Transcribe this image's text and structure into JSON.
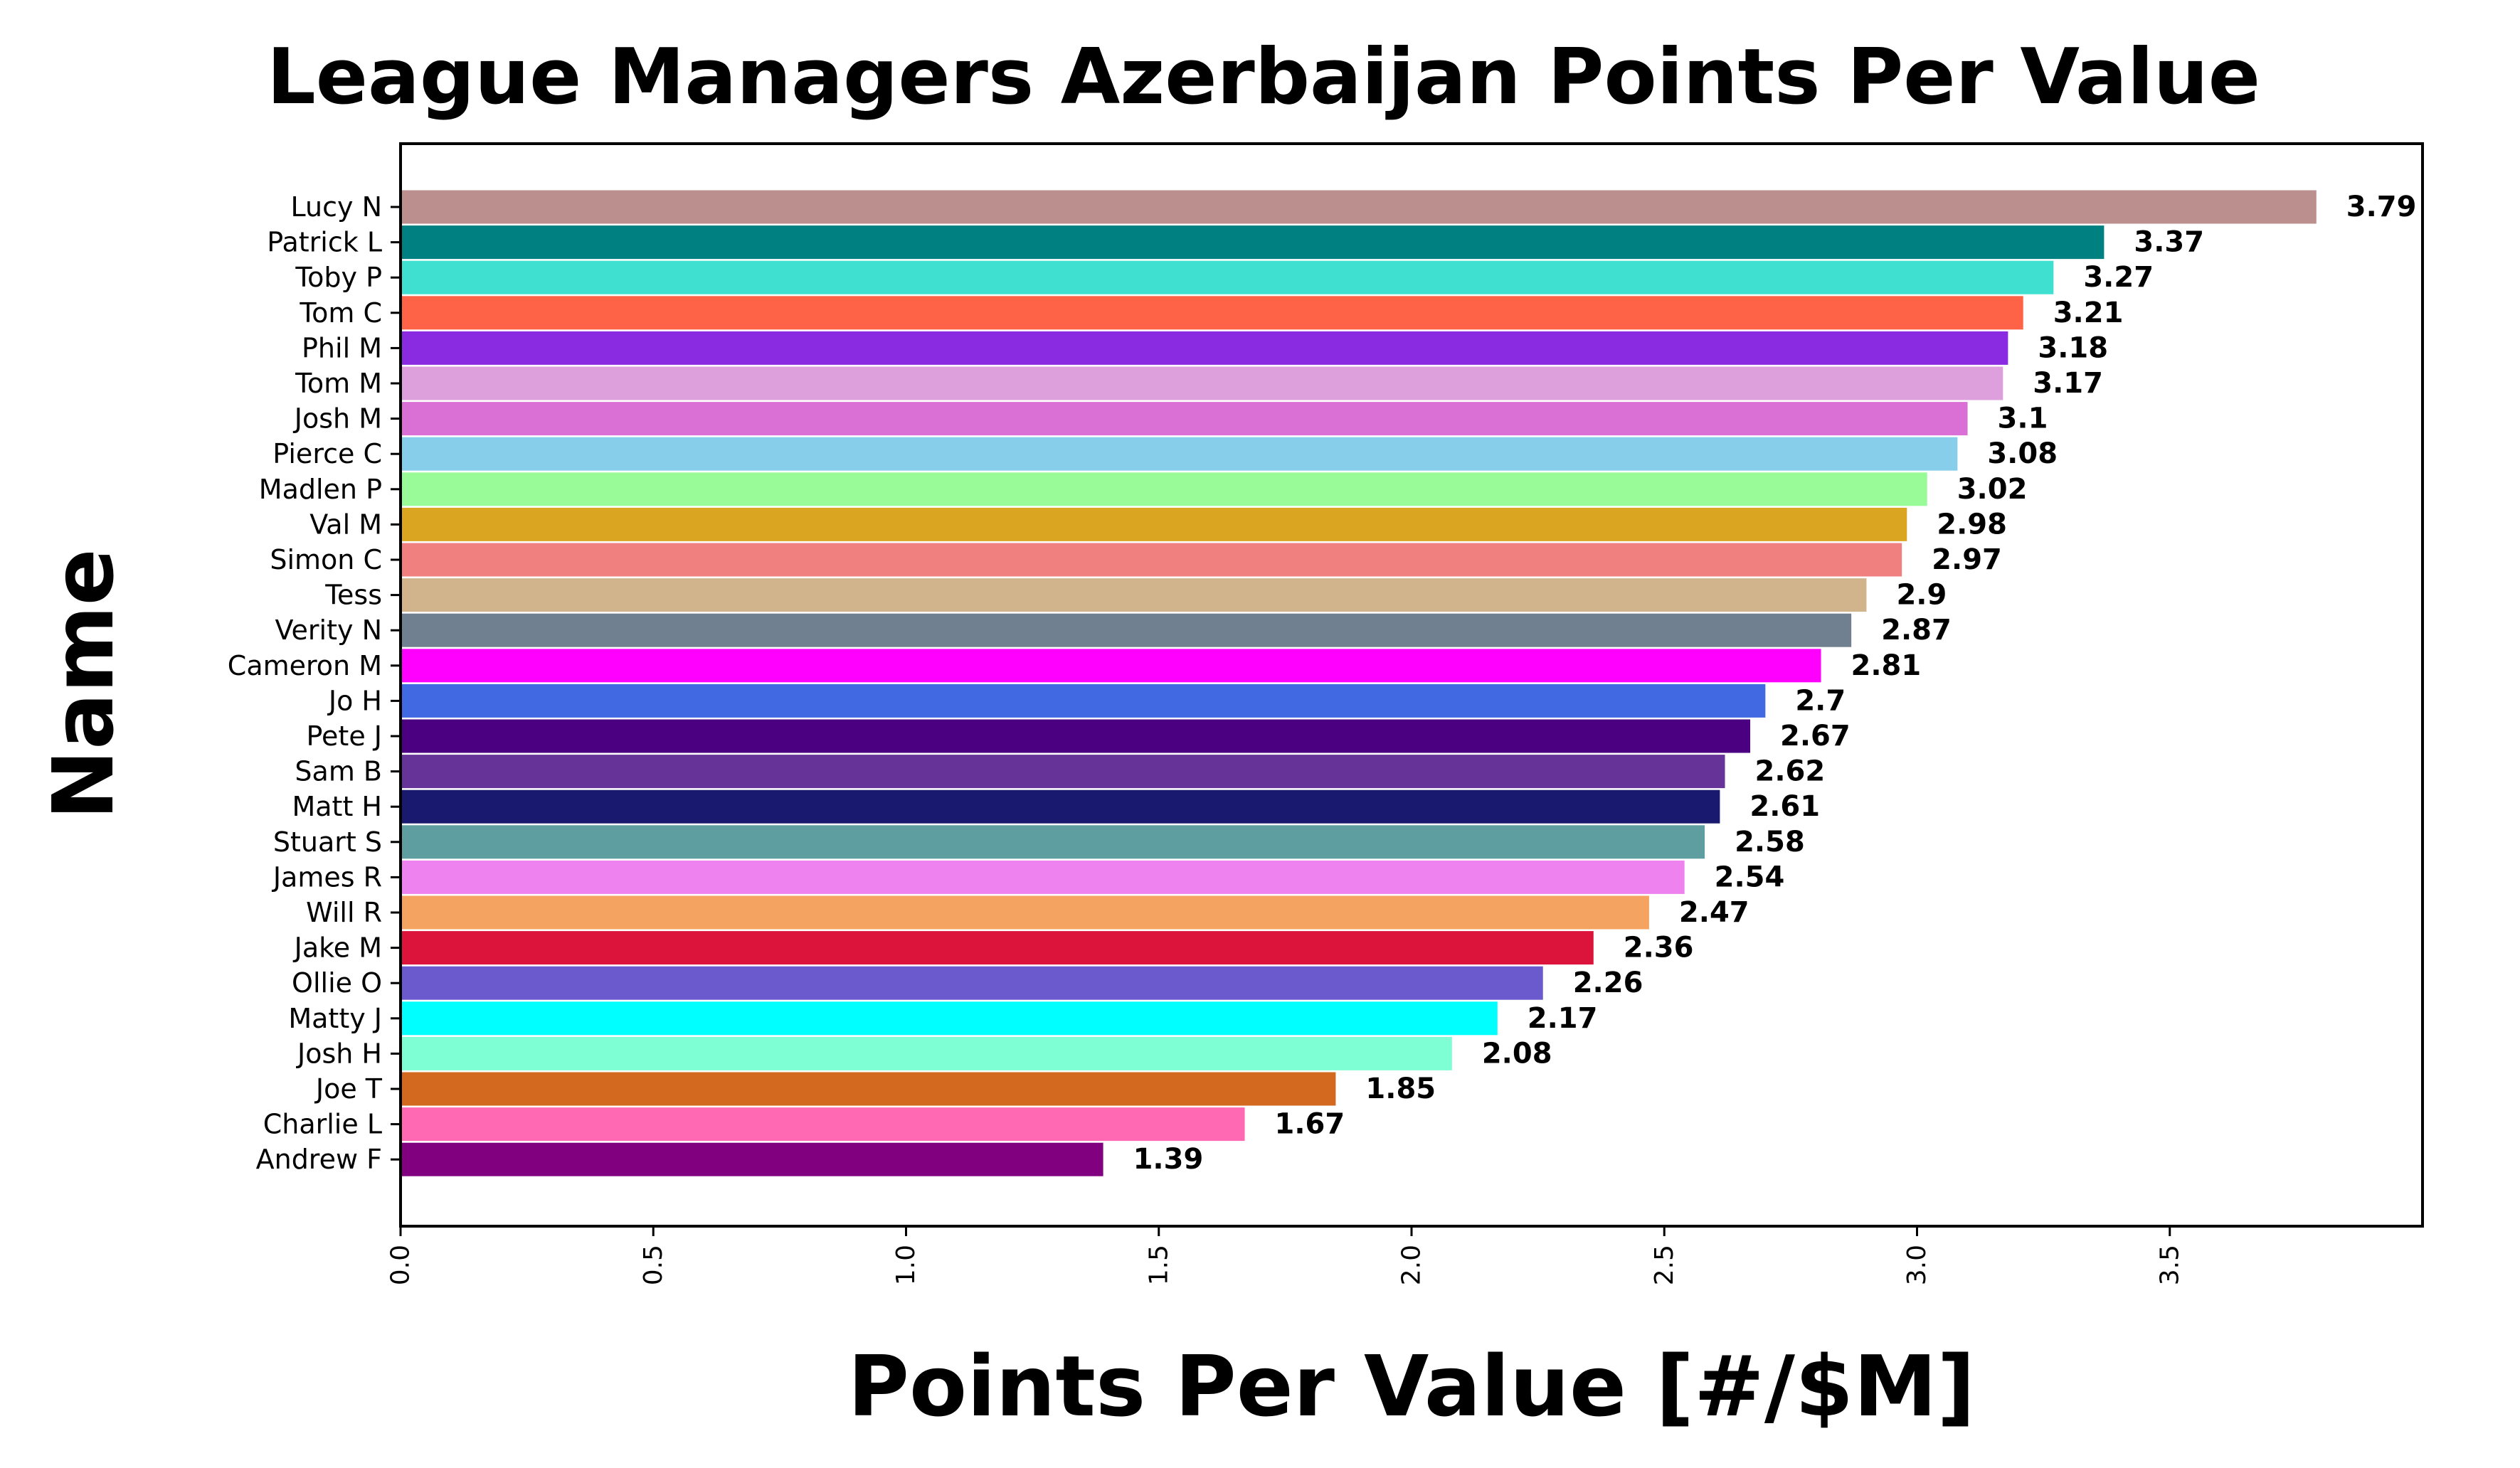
{
  "chart_data": {
    "type": "bar",
    "orientation": "horizontal",
    "title": "League Managers Azerbaijan Points Per Value",
    "xlabel": "Points Per Value [#/$M]",
    "ylabel": "Name",
    "xlim": [
      0,
      4.0
    ],
    "xticks": [
      "0.0",
      "0.5",
      "1.0",
      "1.5",
      "2.0",
      "2.5",
      "3.0",
      "3.5"
    ],
    "grid": false,
    "categories": [
      "Lucy N",
      "Patrick L",
      "Toby P",
      "Tom C",
      "Phil M",
      "Tom M",
      "Josh M",
      "Pierce C",
      "Madlen P",
      "Val M",
      "Simon C",
      "Tess",
      "Verity N",
      "Cameron M",
      "Jo H",
      "Pete J",
      "Sam B",
      "Matt H",
      "Stuart S",
      "James R",
      "Will R",
      "Jake M",
      "Ollie O",
      "Matty J",
      "Josh H",
      "Joe T",
      "Charlie L",
      "Andrew F"
    ],
    "values": [
      3.79,
      3.37,
      3.27,
      3.21,
      3.18,
      3.17,
      3.1,
      3.08,
      3.02,
      2.98,
      2.97,
      2.9,
      2.87,
      2.81,
      2.7,
      2.67,
      2.62,
      2.61,
      2.58,
      2.54,
      2.47,
      2.36,
      2.26,
      2.17,
      2.08,
      1.85,
      1.67,
      1.39
    ],
    "value_labels": [
      "3.79",
      "3.37",
      "3.27",
      "3.21",
      "3.18",
      "3.17",
      "3.1",
      "3.08",
      "3.02",
      "2.98",
      "2.97",
      "2.9",
      "2.87",
      "2.81",
      "2.7",
      "2.67",
      "2.62",
      "2.61",
      "2.58",
      "2.54",
      "2.47",
      "2.36",
      "2.26",
      "2.17",
      "2.08",
      "1.85",
      "1.67",
      "1.39"
    ],
    "colors": [
      "#bc8f8f",
      "#008080",
      "#40e0d0",
      "#ff6347",
      "#8a2be2",
      "#dda0dd",
      "#da70d6",
      "#87ceeb",
      "#98fb98",
      "#daa520",
      "#f08080",
      "#d2b48c",
      "#708090",
      "#ff00ff",
      "#4169e1",
      "#4b0082",
      "#663399",
      "#191970",
      "#5f9ea0",
      "#ee82ee",
      "#f4a460",
      "#dc143c",
      "#6a5acd",
      "#00ffff",
      "#7fffd4",
      "#d2691e",
      "#ff69b4",
      "#800080"
    ]
  }
}
